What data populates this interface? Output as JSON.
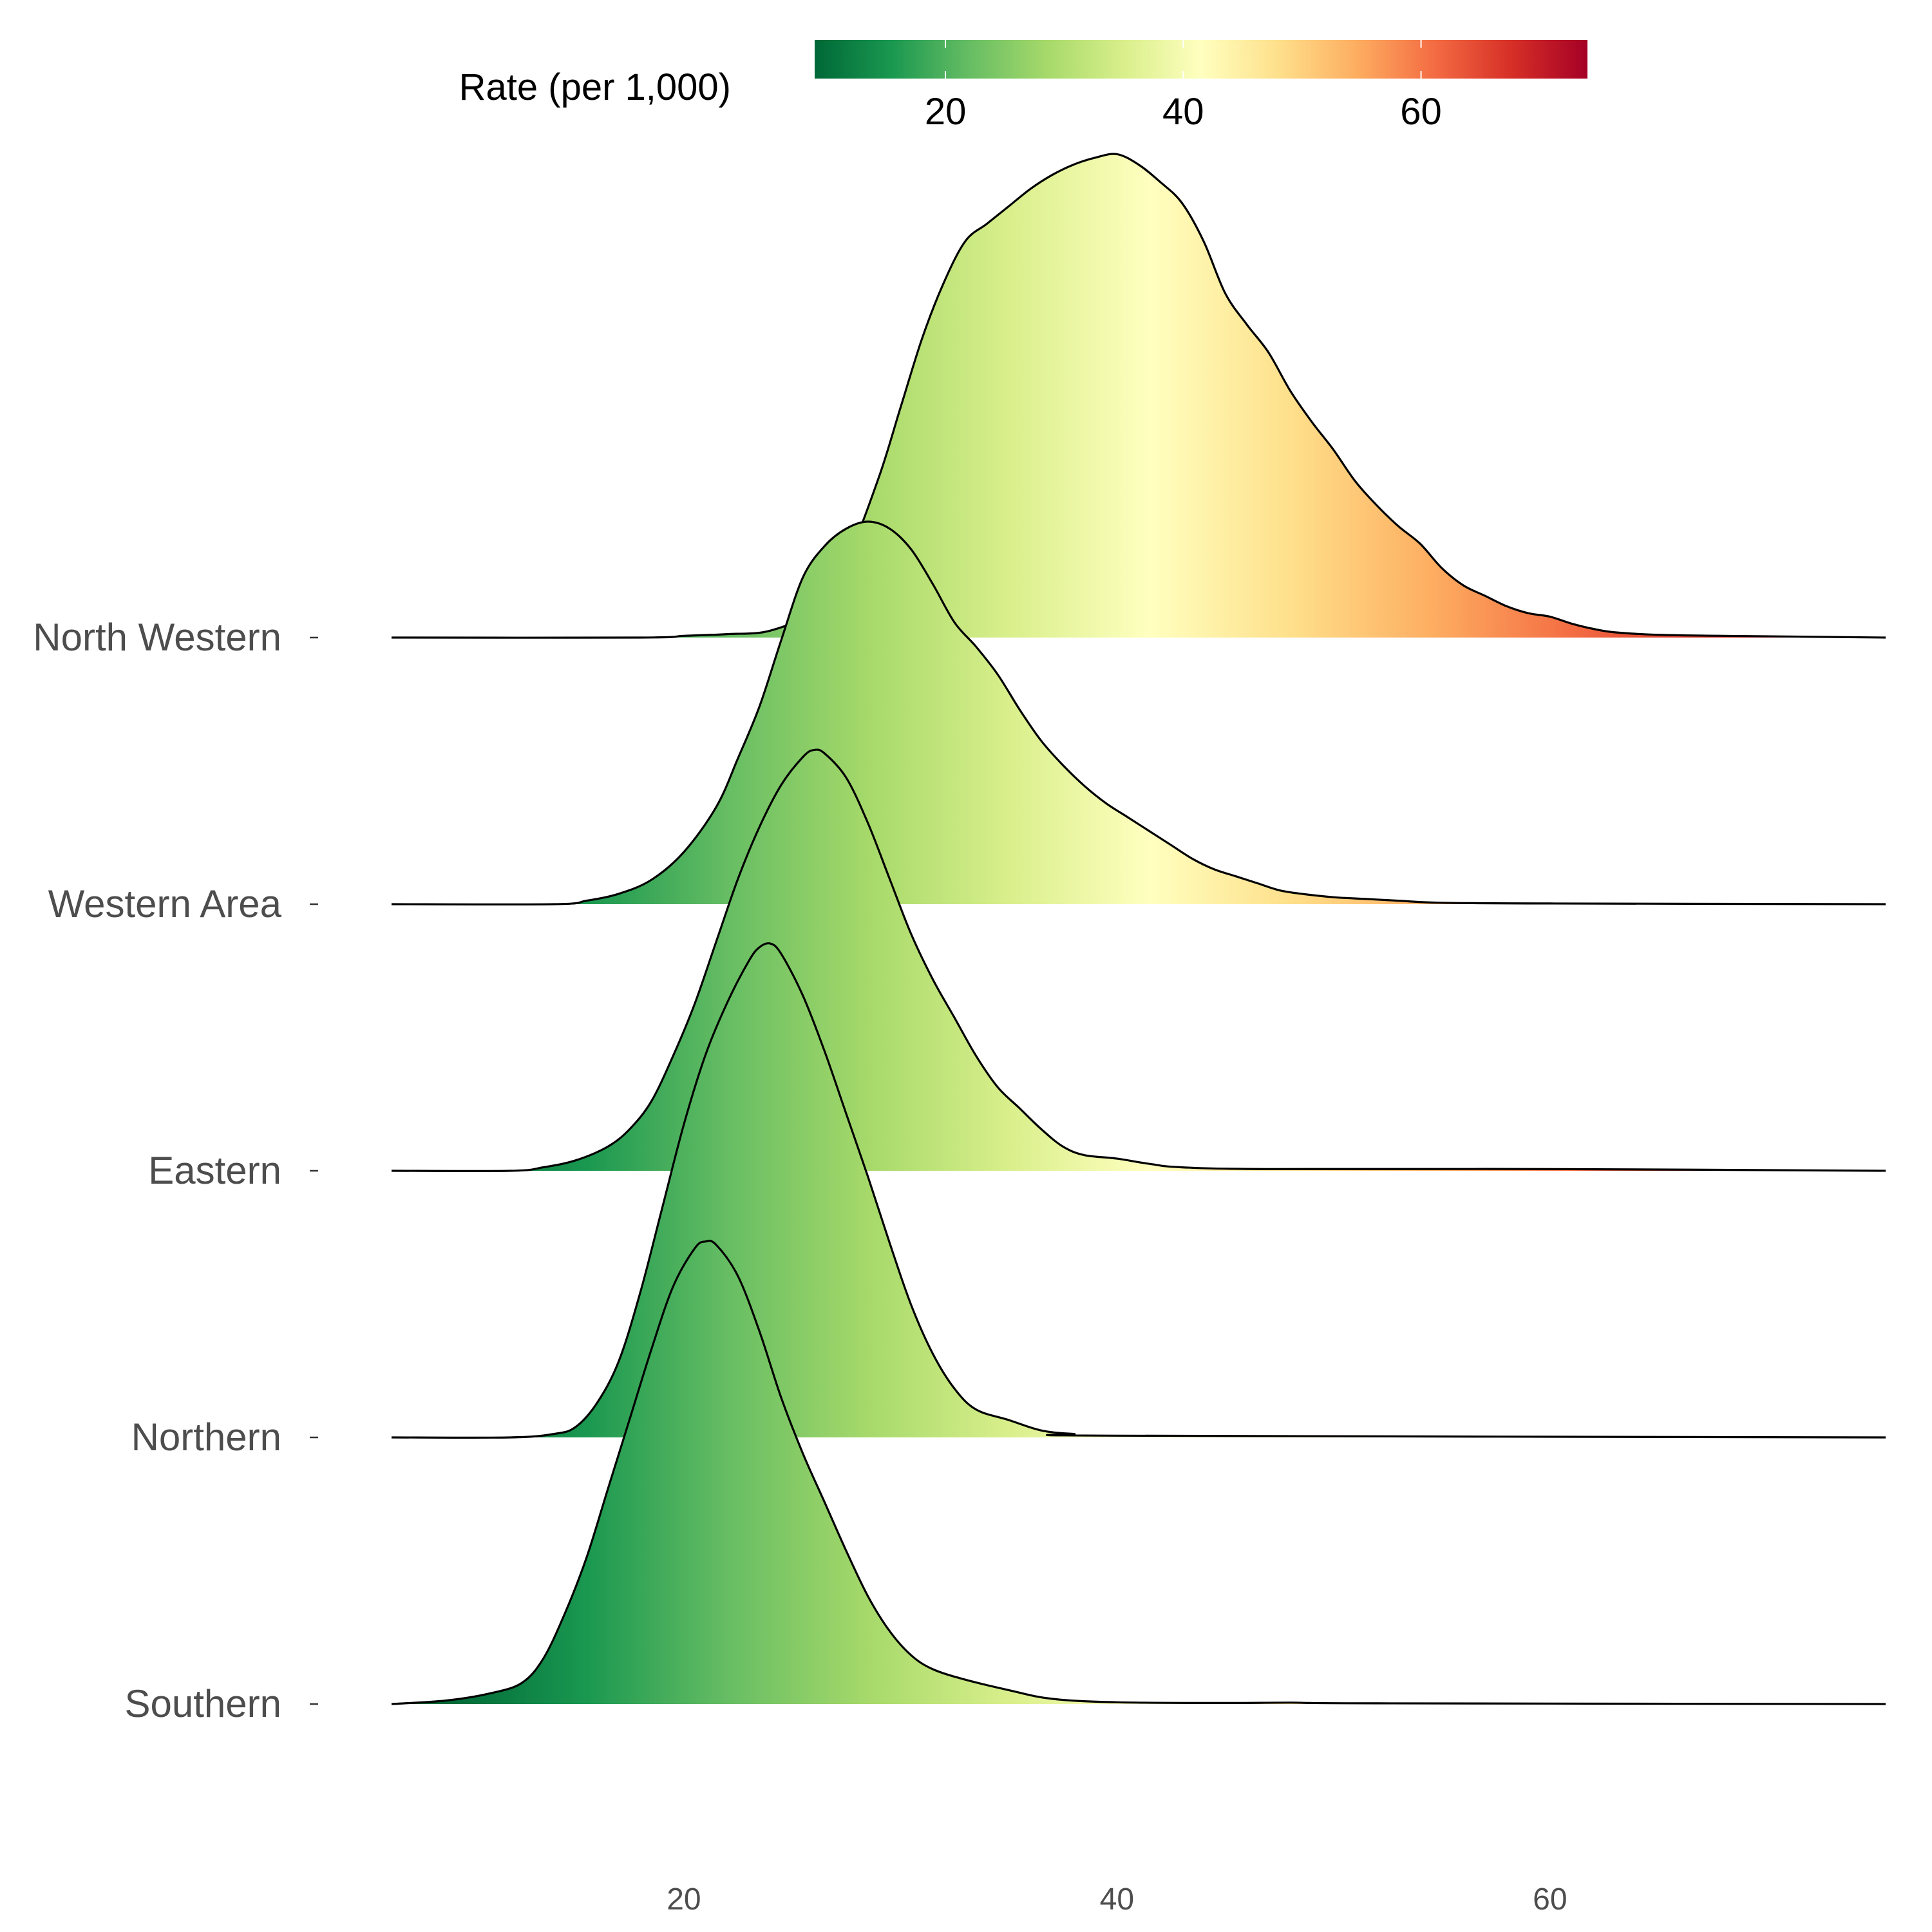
{
  "chart_data": {
    "type": "ridgeline",
    "title": "",
    "xlabel": "",
    "ylabel": "",
    "xlim": [
      6.5,
      75.5
    ],
    "x_ticks": [
      20,
      40,
      60
    ],
    "grid": false,
    "legend": {
      "title": "Rate (per 1,000)",
      "placement": "top",
      "range": [
        9,
        74
      ],
      "ticks": [
        20,
        40,
        60
      ],
      "palette": [
        "#006837",
        "#1a9850",
        "#66bd63",
        "#a6d96a",
        "#d9ef8b",
        "#ffffbf",
        "#fee08b",
        "#fdae61",
        "#f46d43",
        "#d73027",
        "#a50026"
      ]
    },
    "series": [
      {
        "name": "Southern",
        "density": [
          [
            6.5,
            0.0
          ],
          [
            9,
            0.01
          ],
          [
            11,
            0.03
          ],
          [
            12.5,
            0.06
          ],
          [
            13.5,
            0.13
          ],
          [
            14.5,
            0.26
          ],
          [
            15.5,
            0.42
          ],
          [
            16.5,
            0.62
          ],
          [
            17.5,
            0.82
          ],
          [
            18.5,
            1.02
          ],
          [
            19.5,
            1.2
          ],
          [
            20.5,
            1.31
          ],
          [
            21,
            1.33
          ],
          [
            21.5,
            1.32
          ],
          [
            22.5,
            1.23
          ],
          [
            23.5,
            1.07
          ],
          [
            24.5,
            0.88
          ],
          [
            25.5,
            0.72
          ],
          [
            26.5,
            0.58
          ],
          [
            27.5,
            0.44
          ],
          [
            28.5,
            0.31
          ],
          [
            29.5,
            0.21
          ],
          [
            30.5,
            0.14
          ],
          [
            31.5,
            0.1
          ],
          [
            33,
            0.07
          ],
          [
            35,
            0.04
          ],
          [
            37,
            0.015
          ],
          [
            40,
            0.005
          ],
          [
            45,
            0.003
          ],
          [
            48,
            0.004
          ],
          [
            52,
            0.002
          ],
          [
            75.5,
            0.0
          ]
        ]
      },
      {
        "name": "Northern",
        "density": [
          [
            6.5,
            0.0
          ],
          [
            12,
            0.0
          ],
          [
            14,
            0.01
          ],
          [
            15,
            0.03
          ],
          [
            16,
            0.1
          ],
          [
            17,
            0.22
          ],
          [
            18,
            0.42
          ],
          [
            19,
            0.66
          ],
          [
            20,
            0.9
          ],
          [
            21,
            1.1
          ],
          [
            22,
            1.25
          ],
          [
            23,
            1.37
          ],
          [
            23.5,
            1.41
          ],
          [
            24,
            1.42
          ],
          [
            24.5,
            1.39
          ],
          [
            25.5,
            1.27
          ],
          [
            26.5,
            1.11
          ],
          [
            27.5,
            0.93
          ],
          [
            28.5,
            0.75
          ],
          [
            29.5,
            0.56
          ],
          [
            30.5,
            0.38
          ],
          [
            31.5,
            0.24
          ],
          [
            32.5,
            0.14
          ],
          [
            33.5,
            0.08
          ],
          [
            35,
            0.05
          ],
          [
            36.5,
            0.02
          ],
          [
            38,
            0.01
          ],
          [
            40,
            0.005
          ],
          [
            75.5,
            0.0
          ]
        ]
      },
      {
        "name": "Eastern",
        "density": [
          [
            6.5,
            0.0
          ],
          [
            12,
            0.0
          ],
          [
            13.5,
            0.01
          ],
          [
            15,
            0.03
          ],
          [
            16.5,
            0.07
          ],
          [
            17.5,
            0.12
          ],
          [
            18.5,
            0.2
          ],
          [
            19.5,
            0.33
          ],
          [
            20.5,
            0.48
          ],
          [
            21.5,
            0.66
          ],
          [
            22.5,
            0.84
          ],
          [
            23.5,
            0.99
          ],
          [
            24.5,
            1.11
          ],
          [
            25.5,
            1.19
          ],
          [
            26,
            1.21
          ],
          [
            26.5,
            1.2
          ],
          [
            27.5,
            1.13
          ],
          [
            28.5,
            1.0
          ],
          [
            29.5,
            0.84
          ],
          [
            30.5,
            0.68
          ],
          [
            31.5,
            0.55
          ],
          [
            32.5,
            0.44
          ],
          [
            33.5,
            0.33
          ],
          [
            34.5,
            0.24
          ],
          [
            35.5,
            0.18
          ],
          [
            36.5,
            0.12
          ],
          [
            37.5,
            0.07
          ],
          [
            38.5,
            0.045
          ],
          [
            40,
            0.035
          ],
          [
            41.5,
            0.02
          ],
          [
            43,
            0.01
          ],
          [
            47,
            0.005
          ],
          [
            60,
            0.005
          ],
          [
            75.5,
            0.0
          ]
        ]
      },
      {
        "name": "Western Area",
        "density": [
          [
            6.5,
            0.0
          ],
          [
            14,
            0.0
          ],
          [
            15.5,
            0.01
          ],
          [
            17,
            0.03
          ],
          [
            18.5,
            0.07
          ],
          [
            20,
            0.15
          ],
          [
            21.5,
            0.28
          ],
          [
            22.5,
            0.42
          ],
          [
            23.5,
            0.57
          ],
          [
            24.5,
            0.76
          ],
          [
            25.5,
            0.94
          ],
          [
            26.5,
            1.03
          ],
          [
            27.5,
            1.08
          ],
          [
            28.5,
            1.1
          ],
          [
            29.5,
            1.08
          ],
          [
            30.5,
            1.02
          ],
          [
            31.5,
            0.92
          ],
          [
            32.5,
            0.81
          ],
          [
            33.5,
            0.74
          ],
          [
            34.5,
            0.66
          ],
          [
            35.5,
            0.56
          ],
          [
            36.5,
            0.47
          ],
          [
            37.5,
            0.4
          ],
          [
            38.5,
            0.34
          ],
          [
            39.5,
            0.29
          ],
          [
            40.5,
            0.25
          ],
          [
            41.5,
            0.21
          ],
          [
            42.5,
            0.17
          ],
          [
            43.5,
            0.13
          ],
          [
            44.5,
            0.1
          ],
          [
            45.5,
            0.08
          ],
          [
            46.5,
            0.06
          ],
          [
            47.5,
            0.04
          ],
          [
            48.5,
            0.03
          ],
          [
            50,
            0.02
          ],
          [
            51.5,
            0.015
          ],
          [
            53,
            0.01
          ],
          [
            55,
            0.004
          ],
          [
            60,
            0.002
          ],
          [
            75.5,
            0.0
          ]
        ]
      },
      {
        "name": "North Western",
        "density": [
          [
            6.5,
            0.0
          ],
          [
            18,
            0.0
          ],
          [
            20,
            0.005
          ],
          [
            22,
            0.01
          ],
          [
            24,
            0.02
          ],
          [
            26,
            0.08
          ],
          [
            27.5,
            0.22
          ],
          [
            29,
            0.46
          ],
          [
            30,
            0.66
          ],
          [
            31,
            0.86
          ],
          [
            32,
            1.02
          ],
          [
            33,
            1.14
          ],
          [
            34,
            1.19
          ],
          [
            35,
            1.24
          ],
          [
            36,
            1.29
          ],
          [
            37,
            1.33
          ],
          [
            38,
            1.36
          ],
          [
            39,
            1.38
          ],
          [
            40,
            1.39
          ],
          [
            41,
            1.36
          ],
          [
            42,
            1.31
          ],
          [
            43,
            1.25
          ],
          [
            44,
            1.14
          ],
          [
            45,
            0.99
          ],
          [
            46,
            0.9
          ],
          [
            47,
            0.82
          ],
          [
            48,
            0.71
          ],
          [
            49,
            0.62
          ],
          [
            50,
            0.54
          ],
          [
            51,
            0.45
          ],
          [
            52,
            0.38
          ],
          [
            53,
            0.32
          ],
          [
            54,
            0.27
          ],
          [
            55,
            0.2
          ],
          [
            56,
            0.15
          ],
          [
            57,
            0.12
          ],
          [
            58,
            0.09
          ],
          [
            59,
            0.07
          ],
          [
            60,
            0.06
          ],
          [
            61,
            0.04
          ],
          [
            62,
            0.025
          ],
          [
            63,
            0.015
          ],
          [
            65,
            0.008
          ],
          [
            68,
            0.005
          ],
          [
            75.5,
            0.0
          ]
        ]
      }
    ]
  }
}
